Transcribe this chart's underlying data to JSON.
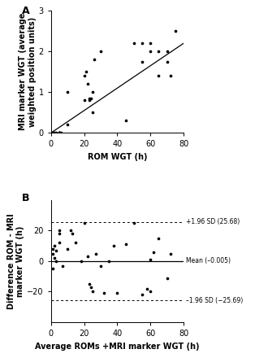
{
  "panel_A": {
    "scatter_x": [
      1,
      1,
      2,
      3,
      5,
      5,
      5,
      5,
      6,
      10,
      10,
      20,
      20,
      21,
      22,
      23,
      23,
      24,
      25,
      25,
      26,
      30,
      45,
      50,
      55,
      55,
      60,
      60,
      65,
      65,
      70,
      70,
      72,
      75
    ],
    "scatter_y": [
      0,
      0,
      0,
      0,
      0,
      0,
      0,
      0,
      0,
      1.0,
      0.2,
      0.8,
      1.4,
      1.5,
      1.2,
      0.8,
      0.85,
      0.85,
      0.5,
      1.0,
      1.8,
      2.0,
      0.3,
      2.2,
      1.75,
      2.2,
      2.0,
      2.2,
      1.4,
      2.0,
      1.75,
      2.0,
      1.4,
      2.5
    ],
    "line_x": [
      0,
      80
    ],
    "line_y": [
      0,
      2.2
    ],
    "xlabel": "ROM WGT (h)",
    "ylabel": "MRI marker WGT (average\nweighted position units)",
    "xlim": [
      0,
      80
    ],
    "ylim": [
      0,
      3
    ],
    "xticks": [
      0,
      20,
      40,
      60,
      80
    ],
    "yticks": [
      0,
      1,
      2,
      3
    ],
    "label": "A"
  },
  "panel_B": {
    "scatter_x": [
      1,
      1,
      1,
      2,
      2,
      3,
      3,
      5,
      5,
      5,
      7,
      10,
      12,
      13,
      15,
      18,
      20,
      22,
      23,
      24,
      25,
      27,
      30,
      32,
      35,
      38,
      40,
      45,
      50,
      55,
      58,
      60,
      60,
      62,
      65,
      70,
      72
    ],
    "scatter_y": [
      -5,
      5,
      8,
      2,
      10,
      0,
      7,
      12,
      18,
      20,
      -3,
      8,
      20,
      18,
      12,
      0,
      25,
      3,
      -15,
      -17,
      -20,
      5,
      -3,
      -21,
      0,
      10,
      -21,
      11,
      25,
      -22,
      -18,
      1,
      -20,
      6,
      15,
      -11,
      5
    ],
    "mean": -0.005,
    "sd_upper": 25.68,
    "sd_lower": -25.69,
    "xlabel": "Average ROMs +MRI marker WGT (h)",
    "ylabel": "Difference ROM - MRI\nmarker WGT (h)",
    "xlim": [
      0,
      80
    ],
    "ylim": [
      -40,
      40
    ],
    "xticks": [
      0,
      20,
      40,
      60,
      80
    ],
    "yticks": [
      -20,
      0,
      20
    ],
    "label": "B",
    "mean_label": "Mean (–0.005)",
    "sd_upper_label": "+1.96 SD (25.68)",
    "sd_lower_label": "–1.96 SD (−25.69)"
  },
  "dot_color": "#000000",
  "line_color": "#000000",
  "bg_color": "#ffffff",
  "font_size": 7
}
